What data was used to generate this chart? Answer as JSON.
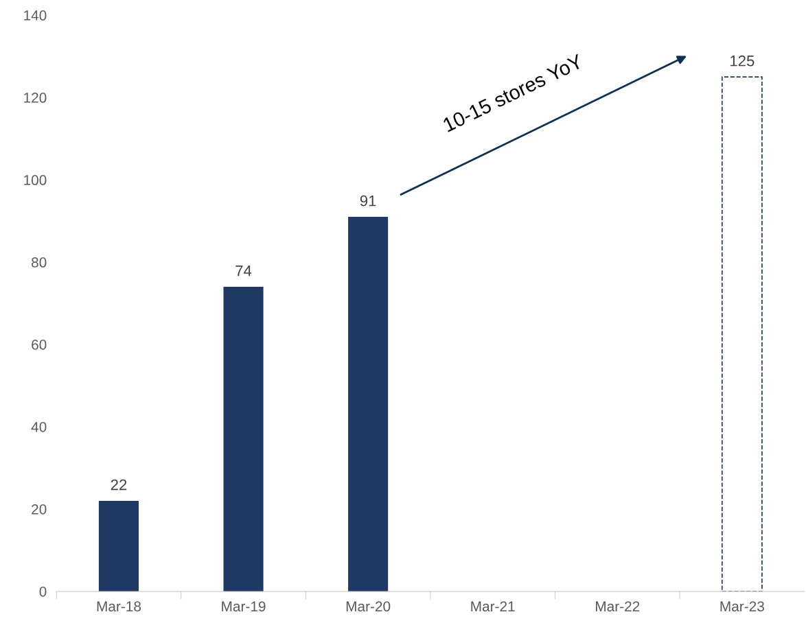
{
  "chart_data": {
    "type": "bar",
    "categories": [
      "Mar-18",
      "Mar-19",
      "Mar-20",
      "Mar-21",
      "Mar-22",
      "Mar-23"
    ],
    "series": [
      {
        "color": "#1f3864",
        "values": [
          22,
          74,
          91,
          null,
          null,
          null
        ]
      },
      {
        "color": "#1f3864",
        "line_style": "dashed",
        "values": [
          null,
          null,
          null,
          null,
          null,
          125
        ]
      }
    ],
    "ylim": [
      0,
      140
    ],
    "yticks": [
      0,
      20,
      40,
      60,
      80,
      100,
      120,
      140
    ],
    "data_labels": true,
    "grid": false,
    "annotations": [
      "10-15 stores YoY"
    ]
  }
}
